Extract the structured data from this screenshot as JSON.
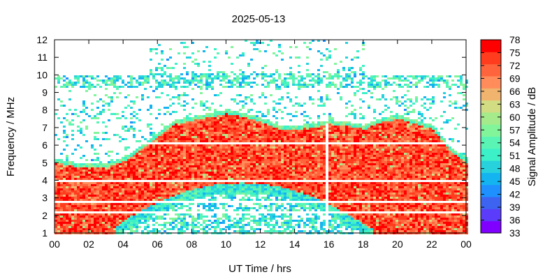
{
  "chart_data": {
    "type": "heatmap",
    "title": "2025-05-13",
    "xlabel": "UT Time / hrs",
    "ylabel": "Frequency / MHz",
    "colorbar_label": "Signal Amplitude / dB",
    "x_ticks": [
      "00",
      "02",
      "04",
      "06",
      "08",
      "10",
      "12",
      "14",
      "16",
      "18",
      "20",
      "22",
      "00"
    ],
    "x_range": [
      0,
      24
    ],
    "y_ticks": [
      "1",
      "2",
      "3",
      "4",
      "5",
      "6",
      "7",
      "8",
      "9",
      "10",
      "11",
      "12"
    ],
    "y_range": [
      1,
      12
    ],
    "colorbar_ticks": [
      "33",
      "36",
      "39",
      "42",
      "45",
      "48",
      "51",
      "54",
      "57",
      "60",
      "63",
      "66",
      "69",
      "72",
      "75",
      "78"
    ],
    "colorbar_range": [
      33,
      78
    ],
    "colorbar_colors": [
      "#8000ff",
      "#5a3cfa",
      "#3c64f0",
      "#1e90ff",
      "#14b4f0",
      "#28d2dc",
      "#3cf0c8",
      "#5af5b4",
      "#82f59b",
      "#a5eb8c",
      "#d2dc82",
      "#f0b46e",
      "#ff8c5a",
      "#ff643c",
      "#ff3c1e",
      "#ff0000"
    ],
    "grid": false,
    "description_envelope_upper_MHz": [
      [
        0.0,
        5.3
      ],
      [
        1.0,
        5.1
      ],
      [
        2.0,
        5.0
      ],
      [
        3.0,
        5.0
      ],
      [
        4.0,
        5.4
      ],
      [
        5.0,
        6.1
      ],
      [
        6.0,
        6.8
      ],
      [
        7.0,
        7.5
      ],
      [
        8.0,
        7.7
      ],
      [
        9.0,
        7.9
      ],
      [
        10.0,
        8.1
      ],
      [
        11.0,
        7.9
      ],
      [
        12.0,
        7.6
      ],
      [
        13.0,
        7.2
      ],
      [
        14.0,
        7.2
      ],
      [
        15.0,
        7.3
      ],
      [
        16.0,
        7.5
      ],
      [
        17.0,
        7.4
      ],
      [
        18.0,
        7.2
      ],
      [
        19.0,
        7.6
      ],
      [
        20.0,
        7.8
      ],
      [
        21.0,
        7.5
      ],
      [
        22.0,
        7.2
      ],
      [
        23.0,
        6.0
      ],
      [
        24.0,
        5.3
      ]
    ]
  }
}
